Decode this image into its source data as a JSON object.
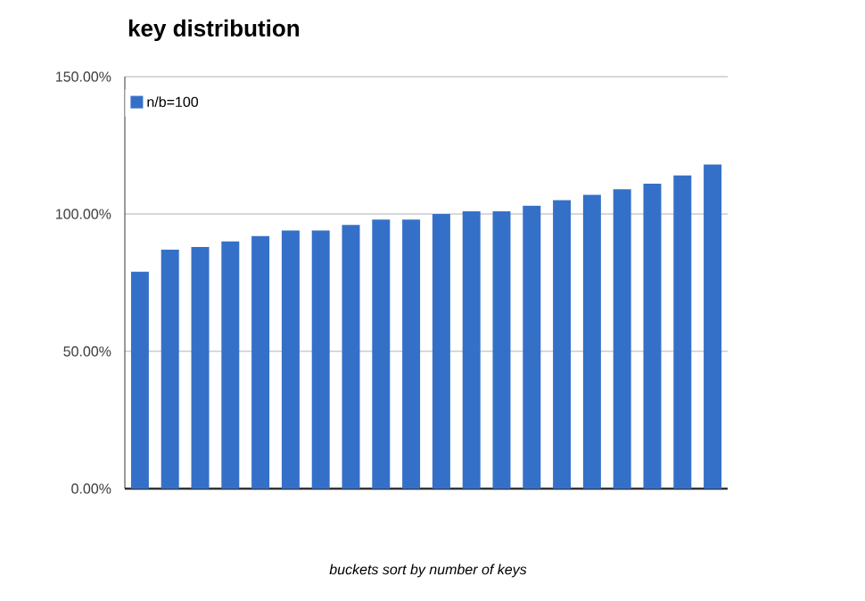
{
  "chart_data": {
    "type": "bar",
    "title": "key distribution",
    "xlabel": "buckets sort by number of keys",
    "categories": [
      null,
      null,
      null,
      null,
      null,
      null,
      null,
      null,
      null,
      null,
      null,
      null,
      null,
      null,
      null,
      null,
      null,
      null,
      null,
      null
    ],
    "series": [
      {
        "name": "n/b=100",
        "color": "#3570c8",
        "values": [
          79,
          87,
          88,
          90,
          92,
          94,
          94,
          96,
          98,
          98,
          100,
          101,
          101,
          103,
          105,
          107,
          109,
          111,
          114,
          118
        ]
      }
    ],
    "ylim": [
      0,
      150
    ],
    "yticks": [
      {
        "value": 0,
        "label": "0.00%"
      },
      {
        "value": 50,
        "label": "50.00%"
      },
      {
        "value": 100,
        "label": "100.00%"
      },
      {
        "value": 150,
        "label": "150.00%"
      }
    ],
    "grid": "y",
    "legend": "top left"
  }
}
